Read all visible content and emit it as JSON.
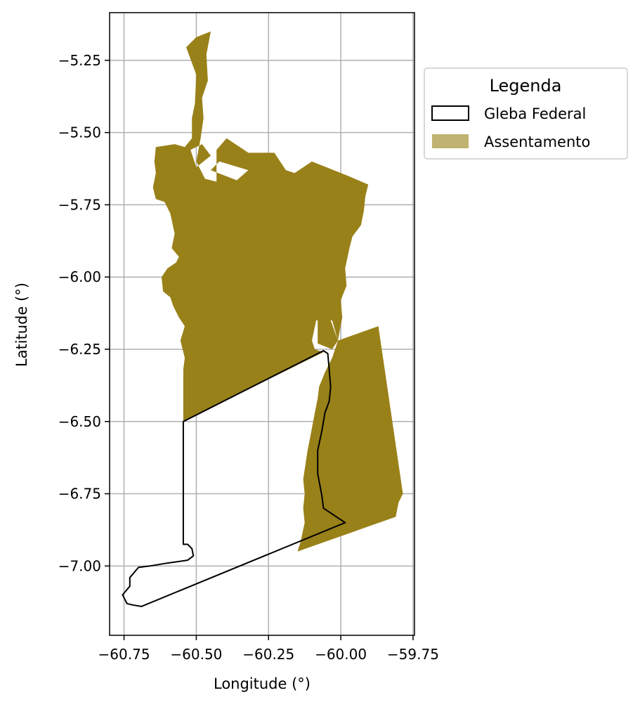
{
  "map": {
    "xlabel": "Longitude (°)",
    "ylabel": "Latitude (°)",
    "xlim": [
      -60.8,
      -59.745
    ],
    "ylim": [
      -7.24,
      -5.085
    ],
    "grid": true,
    "x_ticks": [
      {
        "value": -60.75,
        "label": "−60.75"
      },
      {
        "value": -60.5,
        "label": "−60.50"
      },
      {
        "value": -60.25,
        "label": "−60.25"
      },
      {
        "value": -60.0,
        "label": "−60.00"
      },
      {
        "value": -59.75,
        "label": "−59.75"
      }
    ],
    "y_ticks": [
      {
        "value": -5.25,
        "label": "−5.25"
      },
      {
        "value": -5.5,
        "label": "−5.50"
      },
      {
        "value": -5.75,
        "label": "−5.75"
      },
      {
        "value": -6.0,
        "label": "−6.00"
      },
      {
        "value": -6.25,
        "label": "−6.25"
      },
      {
        "value": -6.5,
        "label": "−6.50"
      },
      {
        "value": -6.75,
        "label": "−6.75"
      },
      {
        "value": -7.0,
        "label": "−7.00"
      }
    ],
    "legend": {
      "title": "Legenda",
      "placement": "outside upper right",
      "items": [
        {
          "label": "Gleba Federal",
          "style": "outline",
          "stroke": "#000000"
        },
        {
          "label": "Assentamento",
          "style": "fill",
          "fill": "#c0b270"
        }
      ]
    },
    "layers": {
      "assentamento": {
        "name": "Assentamento",
        "fill": "#998119",
        "rings": [
          [
            [
              -60.45,
              -5.15
            ],
            [
              -60.5,
              -5.17
            ],
            [
              -60.535,
              -5.205
            ],
            [
              -60.5,
              -5.3
            ],
            [
              -60.505,
              -5.4
            ],
            [
              -60.515,
              -5.45
            ],
            [
              -60.515,
              -5.52
            ],
            [
              -60.54,
              -5.55
            ],
            [
              -60.575,
              -5.54
            ],
            [
              -60.64,
              -5.55
            ],
            [
              -60.645,
              -5.6
            ],
            [
              -60.64,
              -5.64
            ],
            [
              -60.65,
              -5.69
            ],
            [
              -60.64,
              -5.73
            ],
            [
              -60.61,
              -5.74
            ],
            [
              -60.59,
              -5.78
            ],
            [
              -60.575,
              -5.85
            ],
            [
              -60.585,
              -5.9
            ],
            [
              -60.56,
              -5.93
            ],
            [
              -60.57,
              -5.95
            ],
            [
              -60.6,
              -5.97
            ],
            [
              -60.62,
              -6.0
            ],
            [
              -60.615,
              -6.05
            ],
            [
              -60.59,
              -6.07
            ],
            [
              -60.58,
              -6.1
            ],
            [
              -60.56,
              -6.14
            ],
            [
              -60.54,
              -6.17
            ],
            [
              -60.555,
              -6.22
            ],
            [
              -60.54,
              -6.28
            ],
            [
              -60.545,
              -6.32
            ],
            [
              -60.545,
              -6.5
            ],
            [
              -60.06,
              -6.26
            ],
            [
              -60.09,
              -6.25
            ],
            [
              -60.1,
              -6.22
            ],
            [
              -60.085,
              -6.15
            ],
            [
              -60.035,
              -6.15
            ],
            [
              -60.01,
              -6.22
            ],
            [
              -59.87,
              -6.17
            ],
            [
              -59.785,
              -6.75
            ],
            [
              -59.8,
              -6.78
            ],
            [
              -59.81,
              -6.83
            ],
            [
              -60.15,
              -6.95
            ],
            [
              -60.14,
              -6.92
            ],
            [
              -60.125,
              -6.85
            ],
            [
              -60.13,
              -6.8
            ],
            [
              -60.125,
              -6.75
            ],
            [
              -60.13,
              -6.7
            ],
            [
              -60.115,
              -6.6
            ],
            [
              -60.105,
              -6.55
            ],
            [
              -60.09,
              -6.47
            ],
            [
              -60.08,
              -6.42
            ],
            [
              -60.075,
              -6.38
            ],
            [
              -60.055,
              -6.33
            ],
            [
              -60.03,
              -6.28
            ],
            [
              -60.01,
              -6.22
            ],
            [
              -59.995,
              -6.14
            ],
            [
              -60.0,
              -6.08
            ],
            [
              -59.98,
              -6.03
            ],
            [
              -59.985,
              -5.97
            ],
            [
              -59.97,
              -5.9
            ],
            [
              -59.96,
              -5.86
            ],
            [
              -59.93,
              -5.82
            ],
            [
              -59.92,
              -5.77
            ],
            [
              -59.915,
              -5.72
            ],
            [
              -59.905,
              -5.68
            ],
            [
              -59.975,
              -5.65
            ],
            [
              -60.1,
              -5.6
            ],
            [
              -60.16,
              -5.64
            ],
            [
              -60.19,
              -5.63
            ],
            [
              -60.23,
              -5.57
            ],
            [
              -60.32,
              -5.57
            ],
            [
              -60.395,
              -5.52
            ],
            [
              -60.43,
              -5.56
            ],
            [
              -60.43,
              -5.67
            ],
            [
              -60.47,
              -5.66
            ],
            [
              -60.5,
              -5.6
            ],
            [
              -60.485,
              -5.52
            ],
            [
              -60.475,
              -5.45
            ],
            [
              -60.48,
              -5.38
            ],
            [
              -60.46,
              -5.32
            ],
            [
              -60.465,
              -5.23
            ],
            [
              -60.45,
              -5.15
            ]
          ]
        ],
        "holes": [
          [
            [
              -60.45,
              -5.63
            ],
            [
              -60.36,
              -5.665
            ],
            [
              -60.32,
              -5.63
            ],
            [
              -60.42,
              -5.6
            ],
            [
              -60.45,
              -5.63
            ]
          ],
          [
            [
              -60.52,
              -5.56
            ],
            [
              -60.48,
              -5.54
            ],
            [
              -60.45,
              -5.58
            ],
            [
              -60.5,
              -5.62
            ],
            [
              -60.52,
              -5.56
            ]
          ],
          [
            [
              -60.08,
              -6.15
            ],
            [
              -60.03,
              -6.15
            ],
            [
              -60.01,
              -6.22
            ],
            [
              -60.03,
              -6.25
            ],
            [
              -60.08,
              -6.23
            ],
            [
              -60.08,
              -6.15
            ]
          ]
        ]
      },
      "gleba_federal": {
        "name": "Gleba Federal",
        "stroke": "#000000",
        "ring": [
          [
            -60.545,
            -6.5
          ],
          [
            -60.06,
            -6.255
          ],
          [
            -60.045,
            -6.265
          ],
          [
            -60.04,
            -6.32
          ],
          [
            -60.035,
            -6.38
          ],
          [
            -60.04,
            -6.43
          ],
          [
            -60.055,
            -6.47
          ],
          [
            -60.065,
            -6.53
          ],
          [
            -60.08,
            -6.6
          ],
          [
            -60.08,
            -6.68
          ],
          [
            -60.065,
            -6.76
          ],
          [
            -60.06,
            -6.8
          ],
          [
            -59.985,
            -6.85
          ],
          [
            -60.69,
            -7.14
          ],
          [
            -60.72,
            -7.135
          ],
          [
            -60.74,
            -7.13
          ],
          [
            -60.755,
            -7.1
          ],
          [
            -60.73,
            -7.07
          ],
          [
            -60.73,
            -7.04
          ],
          [
            -60.7,
            -7.005
          ],
          [
            -60.66,
            -7.0
          ],
          [
            -60.6,
            -6.99
          ],
          [
            -60.53,
            -6.98
          ],
          [
            -60.51,
            -6.965
          ],
          [
            -60.515,
            -6.94
          ],
          [
            -60.53,
            -6.925
          ],
          [
            -60.545,
            -6.925
          ],
          [
            -60.545,
            -6.5
          ]
        ]
      }
    }
  }
}
